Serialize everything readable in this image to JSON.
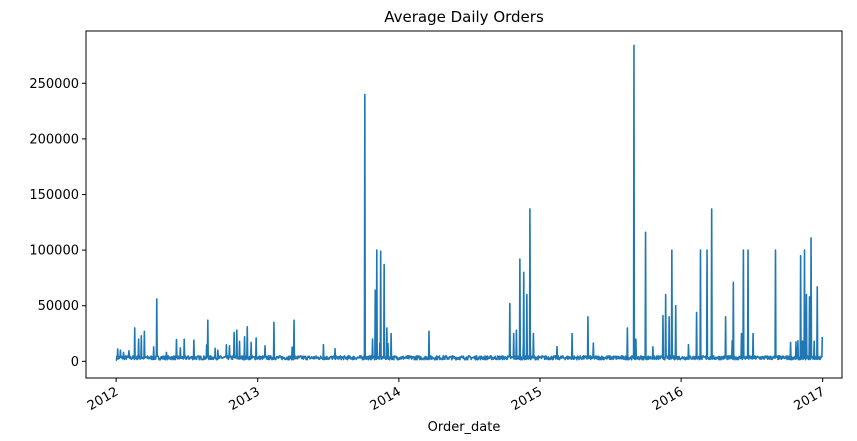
{
  "chart_data": {
    "type": "line",
    "title": "Average Daily Orders",
    "xlabel": "Order_date",
    "ylabel": "",
    "x_axis": "date",
    "xlim": [
      "2011-10-15",
      "2017-02-20"
    ],
    "ylim": [
      -15000,
      297000
    ],
    "grid": false,
    "legend": "none",
    "line_color": "#1f77b4",
    "x_ticks": [
      {
        "date": "2012-01-01",
        "label": "2012"
      },
      {
        "date": "2013-01-01",
        "label": "2013"
      },
      {
        "date": "2014-01-01",
        "label": "2014"
      },
      {
        "date": "2015-01-01",
        "label": "2015"
      },
      {
        "date": "2016-01-01",
        "label": "2016"
      },
      {
        "date": "2017-01-01",
        "label": "2017"
      }
    ],
    "y_ticks": [
      0,
      50000,
      100000,
      150000,
      200000,
      250000
    ],
    "baseline": {
      "start": "2012-01-01",
      "end": "2016-12-31",
      "typical_value": 4000
    },
    "series": [
      {
        "values": [
          [
            "2012-01-01",
            500
          ],
          [
            "2012-01-05",
            11000
          ],
          [
            "2012-01-12",
            10000
          ],
          [
            "2012-01-20",
            8000
          ],
          [
            "2012-02-03",
            9500
          ],
          [
            "2012-02-18",
            30000
          ],
          [
            "2012-02-28",
            20000
          ],
          [
            "2012-03-06",
            23000
          ],
          [
            "2012-03-14",
            27000
          ],
          [
            "2012-04-15",
            56000
          ],
          [
            "2012-05-10",
            8000
          ],
          [
            "2012-06-15",
            12000
          ],
          [
            "2012-07-20",
            19000
          ],
          [
            "2012-08-25",
            37000
          ],
          [
            "2012-09-20",
            10000
          ],
          [
            "2012-10-20",
            14000
          ],
          [
            "2012-11-01",
            26000
          ],
          [
            "2012-11-08",
            28000
          ],
          [
            "2012-11-15",
            18000
          ],
          [
            "2012-11-28",
            22000
          ],
          [
            "2012-12-05",
            31000
          ],
          [
            "2012-12-15",
            17000
          ],
          [
            "2012-12-28",
            21000
          ],
          [
            "2013-01-20",
            14000
          ],
          [
            "2013-02-12",
            35000
          ],
          [
            "2013-04-05",
            37000
          ],
          [
            "2013-06-20",
            15000
          ],
          [
            "2013-10-05",
            240000
          ],
          [
            "2013-10-25",
            20000
          ],
          [
            "2013-11-01",
            64000
          ],
          [
            "2013-11-05",
            100000
          ],
          [
            "2013-11-15",
            99000
          ],
          [
            "2013-11-24",
            87000
          ],
          [
            "2013-12-01",
            30000
          ],
          [
            "2013-12-12",
            25000
          ],
          [
            "2014-03-20",
            27000
          ],
          [
            "2014-10-15",
            52000
          ],
          [
            "2014-10-25",
            25000
          ],
          [
            "2014-11-01",
            28000
          ],
          [
            "2014-11-10",
            92000
          ],
          [
            "2014-11-20",
            80000
          ],
          [
            "2014-11-28",
            60000
          ],
          [
            "2014-12-06",
            137000
          ],
          [
            "2014-12-15",
            25000
          ],
          [
            "2015-03-25",
            25000
          ],
          [
            "2015-05-05",
            40000
          ],
          [
            "2015-08-15",
            30000
          ],
          [
            "2015-09-01",
            284000
          ],
          [
            "2015-10-01",
            116000
          ],
          [
            "2015-10-20",
            13000
          ],
          [
            "2015-11-15",
            41000
          ],
          [
            "2015-11-22",
            60000
          ],
          [
            "2015-12-01",
            40000
          ],
          [
            "2015-12-08",
            100000
          ],
          [
            "2015-12-18",
            50000
          ],
          [
            "2016-01-20",
            15000
          ],
          [
            "2016-02-10",
            44000
          ],
          [
            "2016-02-20",
            100000
          ],
          [
            "2016-03-08",
            100000
          ],
          [
            "2016-03-20",
            137000
          ],
          [
            "2016-04-25",
            40000
          ],
          [
            "2016-05-15",
            71000
          ],
          [
            "2016-06-05",
            25000
          ],
          [
            "2016-06-10",
            100000
          ],
          [
            "2016-06-22",
            100000
          ],
          [
            "2016-07-05",
            25000
          ],
          [
            "2016-09-01",
            100000
          ],
          [
            "2016-10-10",
            17000
          ],
          [
            "2016-11-05",
            95000
          ],
          [
            "2016-11-15",
            100000
          ],
          [
            "2016-11-20",
            60000
          ],
          [
            "2016-11-28",
            58000
          ],
          [
            "2016-12-02",
            111000
          ],
          [
            "2016-12-10",
            18000
          ],
          [
            "2016-12-18",
            67000
          ],
          [
            "2016-12-31",
            22000
          ]
        ]
      }
    ]
  }
}
